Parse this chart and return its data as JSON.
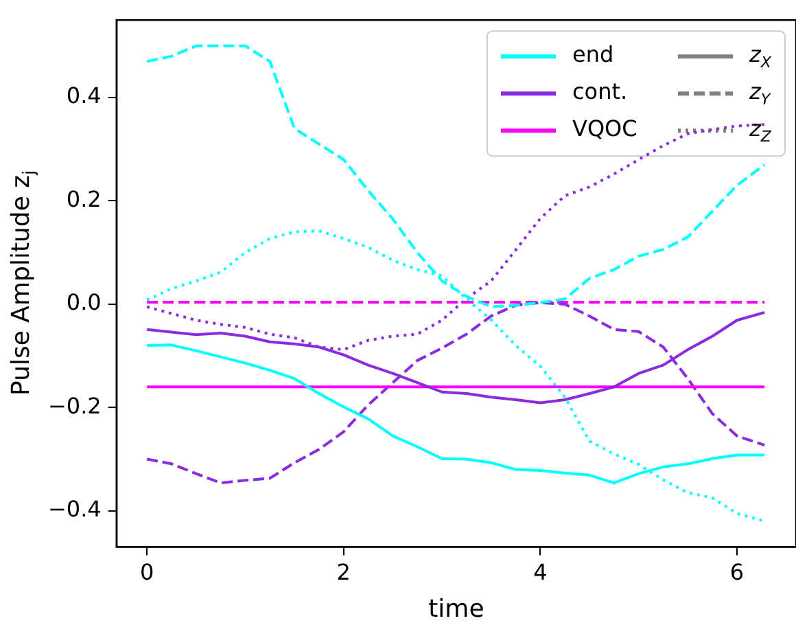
{
  "chart_data": {
    "type": "line",
    "xlabel": "time",
    "ylabel": "Pulse Amplitude z$_{j}$",
    "x": [
      0,
      0.25,
      0.5,
      0.75,
      1.0,
      1.25,
      1.5,
      1.75,
      2.0,
      2.25,
      2.5,
      2.75,
      3.0,
      3.25,
      3.5,
      3.75,
      4.0,
      4.25,
      4.5,
      4.75,
      5.0,
      5.25,
      5.5,
      5.75,
      6.0,
      6.28
    ],
    "xlim": [
      -0.31,
      6.6
    ],
    "xticks": [
      0,
      2,
      4,
      6
    ],
    "ylim": [
      -0.47,
      0.55
    ],
    "yticks": [
      {
        "value": -0.4,
        "label": "−0.4"
      },
      {
        "value": -0.2,
        "label": "−0.2"
      },
      {
        "value": 0,
        "label": "0.0"
      },
      {
        "value": 0.2,
        "label": "0.2"
      },
      {
        "value": 0.4,
        "label": "0.4"
      }
    ],
    "grid": false,
    "legend": "top right",
    "series": [
      {
        "name": "end",
        "color": "#00ffff",
        "line_style": "solid",
        "values": [
          -0.08,
          -0.079,
          -0.09,
          -0.102,
          -0.114,
          -0.128,
          -0.144,
          -0.173,
          -0.199,
          -0.222,
          -0.255,
          -0.276,
          -0.299,
          -0.3,
          -0.307,
          -0.32,
          -0.322,
          -0.327,
          -0.331,
          -0.346,
          -0.328,
          -0.315,
          -0.309,
          -0.299,
          -0.292,
          -0.292
        ]
      },
      {
        "name": "cont.",
        "color": "#8a2be2",
        "line_style": "solid",
        "values": [
          -0.049,
          -0.054,
          -0.059,
          -0.056,
          -0.062,
          -0.073,
          -0.077,
          -0.083,
          -0.098,
          -0.118,
          -0.134,
          -0.152,
          -0.17,
          -0.173,
          -0.18,
          -0.185,
          -0.191,
          -0.185,
          -0.173,
          -0.16,
          -0.134,
          -0.118,
          -0.088,
          -0.062,
          -0.031,
          -0.016
        ]
      },
      {
        "name": "VQOC",
        "color": "#ff00ff",
        "line_style": "solid",
        "values": [
          -0.16,
          -0.16,
          -0.16,
          -0.16,
          -0.16,
          -0.16,
          -0.16,
          -0.16,
          -0.16,
          -0.16,
          -0.16,
          -0.16,
          -0.16,
          -0.16,
          -0.16,
          -0.16,
          -0.16,
          -0.16,
          -0.16,
          -0.16,
          -0.16,
          -0.16,
          -0.16,
          -0.16,
          -0.16,
          -0.16
        ]
      },
      {
        "name": "z$_{X}$",
        "color": "#808080",
        "line_style": "solid",
        "values": [
          null,
          null,
          null,
          null,
          null,
          null,
          null,
          null,
          null,
          null,
          null,
          null,
          null,
          null,
          null,
          null,
          null,
          null,
          null,
          null,
          null,
          null,
          null,
          null,
          null,
          null
        ]
      },
      {
        "name": "z$_{Y}$",
        "color": "#808080",
        "line_style": "dashed",
        "values": [
          null,
          null,
          null,
          null,
          null,
          null,
          null,
          null,
          null,
          null,
          null,
          null,
          null,
          null,
          null,
          null,
          null,
          null,
          null,
          null,
          null,
          null,
          null,
          null,
          null,
          null
        ]
      },
      {
        "name": "z$_{Z}$",
        "color": "#808080",
        "line_style": "dotted",
        "values": [
          null,
          null,
          null,
          null,
          null,
          null,
          null,
          null,
          null,
          null,
          null,
          null,
          null,
          null,
          null,
          null,
          null,
          null,
          null,
          null,
          null,
          null,
          null,
          null,
          null,
          null
        ]
      },
      {
        "color": "#00ffff",
        "line_style": "dashed",
        "values": [
          0.47,
          0.48,
          0.5,
          0.5,
          0.5,
          0.47,
          0.34,
          0.31,
          0.28,
          0.22,
          0.165,
          0.1,
          0.045,
          0.015,
          -0.005,
          -0.002,
          0.003,
          0.01,
          0.05,
          0.067,
          0.093,
          0.106,
          0.13,
          0.18,
          0.23,
          0.27
        ]
      },
      {
        "color": "#8a2be2",
        "line_style": "dashed",
        "values": [
          -0.3,
          -0.309,
          -0.328,
          -0.346,
          -0.341,
          -0.337,
          -0.307,
          -0.281,
          -0.247,
          -0.195,
          -0.152,
          -0.109,
          -0.085,
          -0.058,
          -0.023,
          -0.002,
          0.003,
          0.0,
          -0.023,
          -0.049,
          -0.053,
          -0.083,
          -0.144,
          -0.212,
          -0.255,
          -0.273
        ]
      },
      {
        "color": "#ff00ff",
        "line_style": "dashed",
        "values": [
          0.004,
          0.004,
          0.004,
          0.004,
          0.004,
          0.004,
          0.004,
          0.004,
          0.004,
          0.004,
          0.004,
          0.004,
          0.004,
          0.004,
          0.004,
          0.004,
          0.004,
          0.004,
          0.004,
          0.004,
          0.004,
          0.004,
          0.004,
          0.004,
          0.004,
          0.004
        ]
      },
      {
        "color": "#00ffff",
        "line_style": "dotted",
        "values": [
          0.008,
          0.03,
          0.045,
          0.062,
          0.1,
          0.127,
          0.14,
          0.142,
          0.127,
          0.11,
          0.085,
          0.067,
          0.055,
          0.01,
          -0.03,
          -0.08,
          -0.12,
          -0.18,
          -0.265,
          -0.29,
          -0.31,
          -0.34,
          -0.365,
          -0.375,
          -0.405,
          -0.42
        ]
      },
      {
        "color": "#8a2be2",
        "line_style": "dotted",
        "values": [
          -0.005,
          -0.018,
          -0.031,
          -0.039,
          -0.045,
          -0.058,
          -0.065,
          -0.083,
          -0.088,
          -0.07,
          -0.062,
          -0.058,
          -0.031,
          0.011,
          0.045,
          0.105,
          0.166,
          0.21,
          0.227,
          0.252,
          0.28,
          0.307,
          0.33,
          0.338,
          0.345,
          0.348
        ]
      }
    ]
  }
}
